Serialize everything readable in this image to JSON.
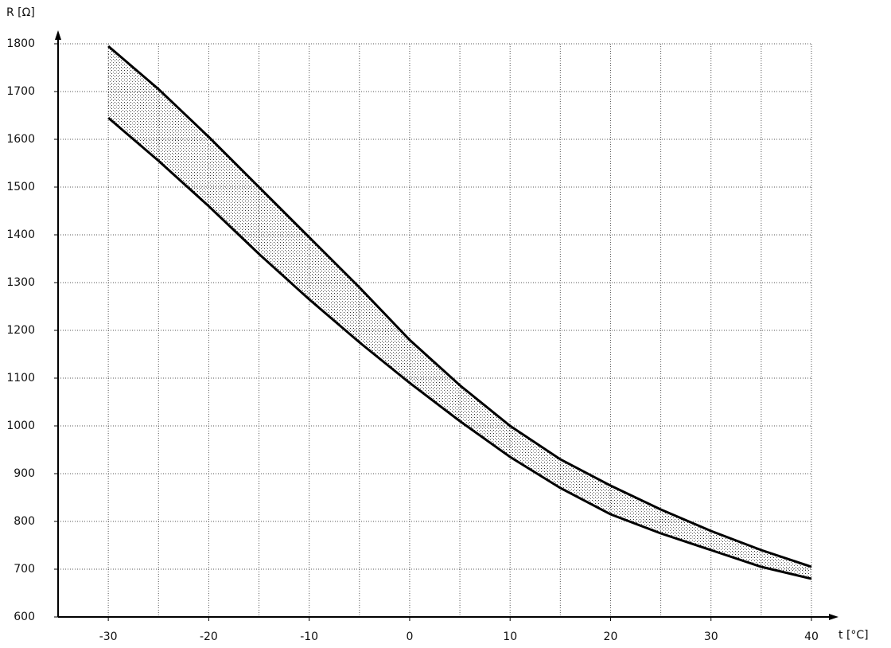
{
  "chart_data": {
    "type": "line",
    "y_label": "R [Ω]",
    "x_label": "t [°C]",
    "x": [
      -30,
      -25,
      -20,
      -15,
      -10,
      -5,
      0,
      5,
      10,
      15,
      20,
      25,
      30,
      35,
      40
    ],
    "series": [
      {
        "color": "#000000",
        "values": [
          1795,
          1705,
          1605,
          1500,
          1395,
          1290,
          1180,
          1085,
          1000,
          930,
          875,
          825,
          780,
          740,
          705
        ]
      },
      {
        "color": "#000000",
        "values": [
          1645,
          1555,
          1460,
          1360,
          1265,
          1175,
          1090,
          1010,
          935,
          870,
          815,
          775,
          740,
          705,
          680
        ]
      }
    ],
    "fill_between": true,
    "xlim": [
      -35,
      40
    ],
    "ylim": [
      600,
      1800
    ],
    "xticks": [
      -30,
      -20,
      -10,
      0,
      10,
      20,
      30,
      40
    ],
    "xgrid": [
      -30,
      -25,
      -20,
      -15,
      -10,
      -5,
      0,
      5,
      10,
      15,
      20,
      25,
      30,
      35,
      40
    ],
    "yticks": [
      600,
      700,
      800,
      900,
      1000,
      1100,
      1200,
      1300,
      1400,
      1500,
      1600,
      1700,
      1800
    ],
    "grid": true
  }
}
